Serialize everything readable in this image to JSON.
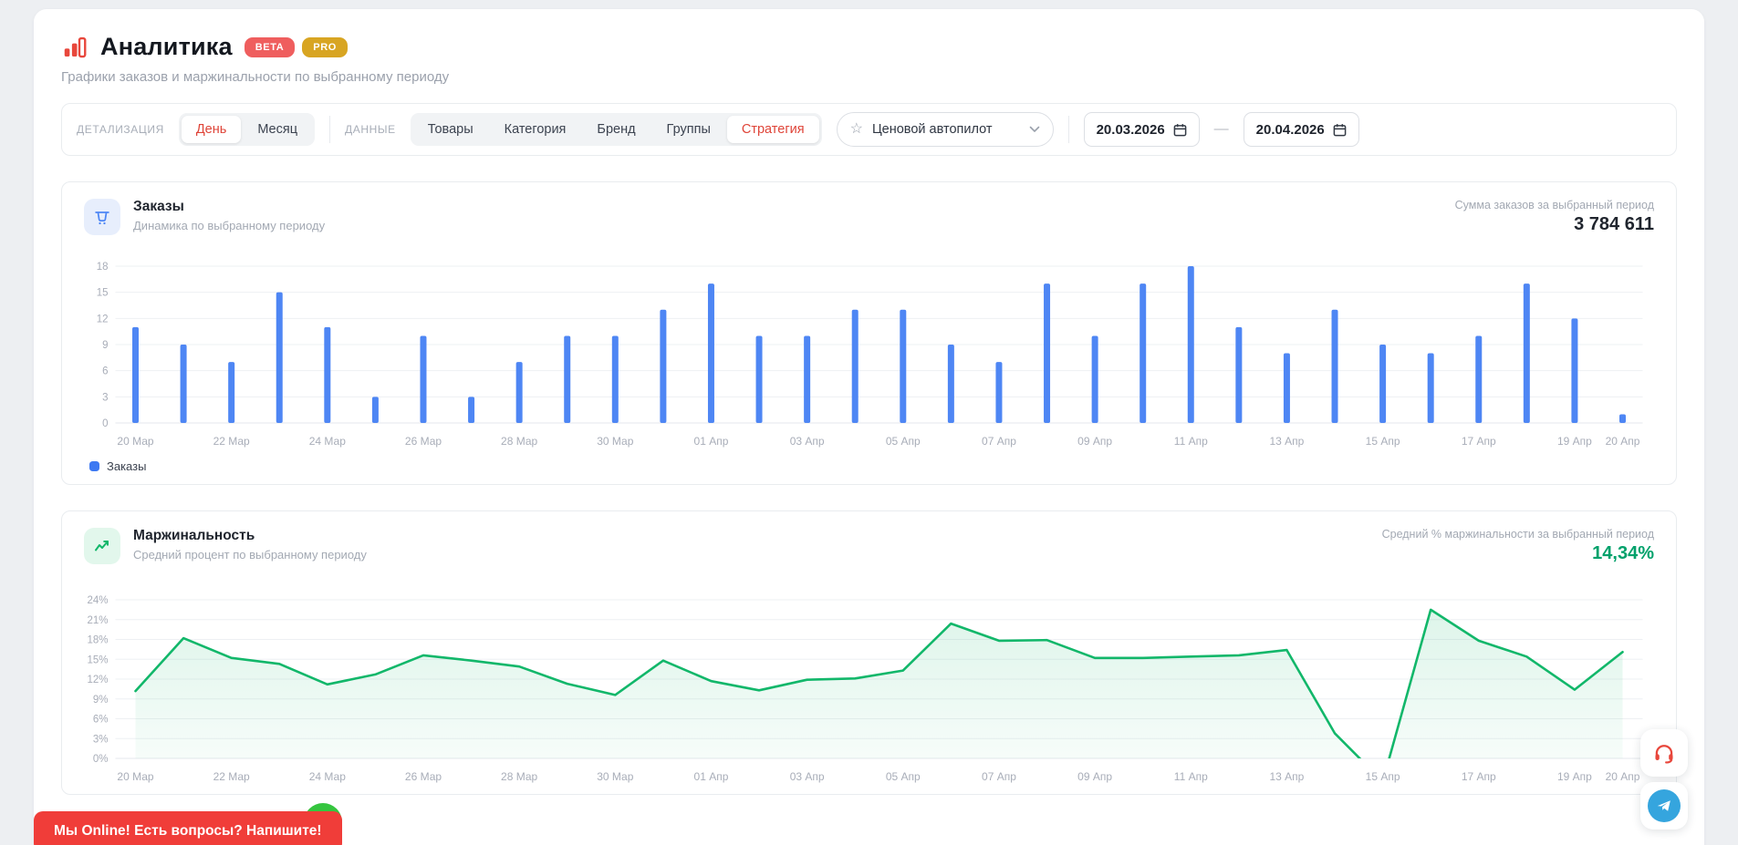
{
  "header": {
    "title": "Аналитика",
    "badges": [
      {
        "name": "beta-badge",
        "label": "BETA",
        "color": "#ef5e5e"
      },
      {
        "name": "pro-badge",
        "label": "PRO",
        "color": "#d8a522"
      }
    ],
    "subtitle": "Графики заказов и маржинальности по выбранному периоду"
  },
  "filters": {
    "detail_label": "ДЕТАЛИЗАЦИЯ",
    "detail_options": [
      {
        "label": "День",
        "selected": true
      },
      {
        "label": "Месяц",
        "selected": false
      }
    ],
    "data_label": "ДАННЫЕ",
    "data_options": [
      {
        "label": "Товары",
        "selected": false
      },
      {
        "label": "Категория",
        "selected": false
      },
      {
        "label": "Бренд",
        "selected": false
      },
      {
        "label": "Группы",
        "selected": false
      },
      {
        "label": "Стратегия",
        "selected": true
      }
    ],
    "strategy_select": {
      "value": "Ценовой автопилот",
      "star_icon": "☆"
    },
    "date_from": "20.03.2026",
    "date_to": "20.04.2026",
    "range_separator": "—"
  },
  "orders_card": {
    "title": "Заказы",
    "subtitle": "Динамика по выбранному периоду",
    "summary_label": "Сумма заказов за выбранный период",
    "summary_value": "3 784 611",
    "legend": [
      {
        "label": "Заказы",
        "color": "#3d79f2"
      }
    ]
  },
  "margin_card": {
    "title": "Маржинальность",
    "subtitle": "Средний процент по выбранному периоду",
    "summary_label": "Средний % маржинальности за выбранный период",
    "summary_value": "14,34%"
  },
  "chat_banner": {
    "text": "Мы Online! Есть вопросы? Напишите!"
  },
  "chart_data": [
    {
      "type": "bar",
      "title": "Заказы",
      "color": "#4e86f4",
      "categories": [
        "20 Мар",
        "21 Мар",
        "22 Мар",
        "23 Мар",
        "24 Мар",
        "25 Мар",
        "26 Мар",
        "27 Мар",
        "28 Мар",
        "29 Мар",
        "30 Мар",
        "31 Мар",
        "01 Апр",
        "02 Апр",
        "03 Апр",
        "04 Апр",
        "05 Апр",
        "06 Апр",
        "07 Апр",
        "08 Апр",
        "09 Апр",
        "10 Апр",
        "11 Апр",
        "12 Апр",
        "13 Апр",
        "14 Апр",
        "15 Апр",
        "16 Апр",
        "17 Апр",
        "18 Апр",
        "19 Апр",
        "20 Апр"
      ],
      "values": [
        11,
        9,
        7,
        15,
        11,
        3,
        10,
        3,
        7,
        10,
        10,
        13,
        16,
        10,
        10,
        13,
        13,
        9,
        7,
        16,
        10,
        16,
        18,
        11,
        8,
        13,
        9,
        8,
        10,
        16,
        12,
        1
      ],
      "shown_x_labels": [
        "20 Мар",
        "22 Мар",
        "24 Мар",
        "26 Мар",
        "28 Мар",
        "30 Мар",
        "01 Апр",
        "03 Апр",
        "05 Апр",
        "07 Апр",
        "09 Апр",
        "11 Апр",
        "13 Апр",
        "15 Апр",
        "17 Апр",
        "19 Апр",
        "20 Апр"
      ],
      "ylim": [
        0,
        18
      ],
      "yticks": [
        0,
        3,
        6,
        9,
        12,
        15,
        18
      ],
      "ytick_suffix": "",
      "grid": true,
      "legend_position": "bottom-left"
    },
    {
      "type": "area",
      "title": "Маржинальность",
      "color": "#12b76a",
      "fill_color": "rgba(18,183,106,0.10)",
      "categories": [
        "20 Мар",
        "21 Мар",
        "22 Мар",
        "23 Мар",
        "24 Мар",
        "25 Мар",
        "26 Мар",
        "27 Мар",
        "28 Мар",
        "29 Мар",
        "30 Мар",
        "31 Мар",
        "01 Апр",
        "02 Апр",
        "03 Апр",
        "04 Апр",
        "05 Апр",
        "06 Апр",
        "07 Апр",
        "08 Апр",
        "09 Апр",
        "10 Апр",
        "11 Апр",
        "12 Апр",
        "13 Апр",
        "14 Апр",
        "15 Апр",
        "16 Апр",
        "17 Апр",
        "18 Апр",
        "19 Апр",
        "20 Апр"
      ],
      "values": [
        10.2,
        18.2,
        15.2,
        14.3,
        11.2,
        12.7,
        15.6,
        14.8,
        13.9,
        11.3,
        9.6,
        14.8,
        11.7,
        10.3,
        11.9,
        12.1,
        13.3,
        20.4,
        17.8,
        17.9,
        15.2,
        15.2,
        15.4,
        15.6,
        16.4,
        3.8,
        -3.5,
        22.5,
        17.8,
        15.4,
        10.4,
        16.1
      ],
      "shown_x_labels": [
        "20 Мар",
        "22 Мар",
        "24 Мар",
        "26 Мар",
        "28 Мар",
        "30 Мар",
        "01 Апр",
        "03 Апр",
        "05 Апр",
        "07 Апр",
        "09 Апр",
        "11 Апр",
        "13 Апр",
        "15 Апр",
        "17 Апр",
        "19 Апр",
        "20 Апр"
      ],
      "ylim": [
        0,
        24
      ],
      "yticks": [
        0,
        3,
        6,
        9,
        12,
        15,
        18,
        21,
        24
      ],
      "ytick_suffix": "%",
      "grid": true,
      "clip_below_zero": true
    }
  ]
}
